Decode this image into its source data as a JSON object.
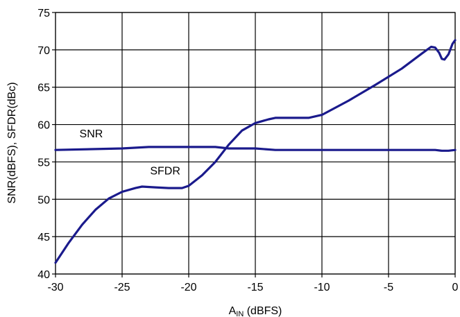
{
  "chart_data": {
    "type": "line",
    "xlabel": "A",
    "xlabel_sub": "IN",
    "xlabel_unit": " (dBFS)",
    "ylabel": "SNR(dBFS), SFDR(dBc)",
    "xlim": [
      -30,
      0
    ],
    "ylim": [
      40,
      75
    ],
    "xticks": [
      -30,
      -25,
      -20,
      -15,
      -10,
      -5,
      0
    ],
    "yticks": [
      40,
      45,
      50,
      55,
      60,
      65,
      70,
      75
    ],
    "grid": true,
    "line_color": "#1a1a8c",
    "series": [
      {
        "name": "SNR",
        "x": [
          -30,
          -25,
          -23,
          -20,
          -18,
          -17,
          -15,
          -13.5,
          -10,
          -5,
          -2,
          -1.5,
          -1,
          -0.5,
          0
        ],
        "y": [
          56.6,
          56.8,
          57.0,
          57.0,
          57.0,
          56.8,
          56.8,
          56.6,
          56.6,
          56.6,
          56.6,
          56.6,
          56.5,
          56.5,
          56.6
        ]
      },
      {
        "name": "SFDR",
        "x": [
          -30,
          -29,
          -28,
          -27,
          -26,
          -25,
          -24,
          -23.5,
          -22.5,
          -21.5,
          -20.5,
          -20,
          -19,
          -18,
          -17,
          -16,
          -15,
          -14,
          -13.5,
          -11,
          -10,
          -8,
          -6,
          -4,
          -2.5,
          -1.8,
          -1.5,
          -1.2,
          -1,
          -0.8,
          -0.5,
          -0.2,
          0
        ],
        "y": [
          41.5,
          44.2,
          46.6,
          48.6,
          50.1,
          51.0,
          51.5,
          51.7,
          51.6,
          51.5,
          51.5,
          51.8,
          53.2,
          55.0,
          57.3,
          59.2,
          60.2,
          60.7,
          60.9,
          60.9,
          61.3,
          63.2,
          65.3,
          67.5,
          69.5,
          70.4,
          70.3,
          69.6,
          68.8,
          68.7,
          69.4,
          70.8,
          71.3
        ]
      }
    ],
    "annotations": [
      {
        "text": "SNR",
        "x": -28.2,
        "y": 58.3
      },
      {
        "text": "SFDR",
        "x": -22.9,
        "y": 53.3
      }
    ]
  }
}
